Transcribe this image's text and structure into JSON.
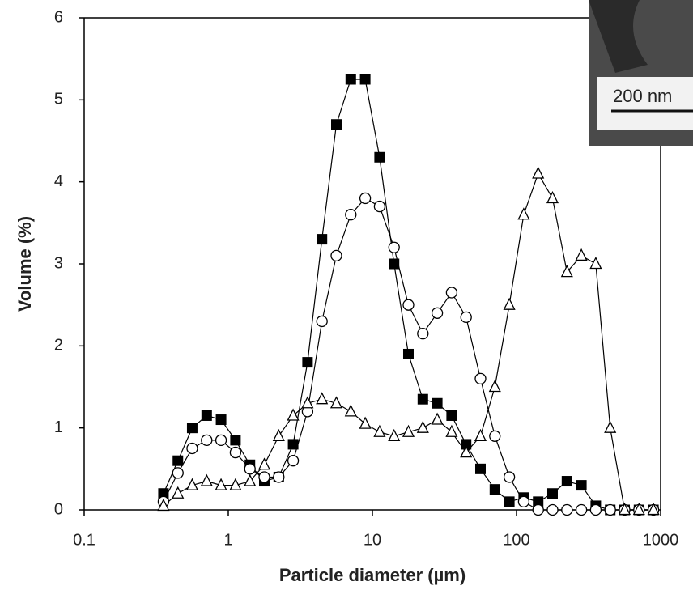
{
  "chart_data": {
    "type": "scatter",
    "x_label": "Particle diameter (µm)",
    "y_label": "Volume (%)",
    "xlog": true,
    "xlim": [
      0.1,
      1000
    ],
    "xticks": [
      0.1,
      1,
      10,
      100,
      1000
    ],
    "ylim": [
      0,
      6
    ],
    "yticks": [
      0,
      1,
      2,
      3,
      4,
      5,
      6
    ],
    "x": [
      0.355,
      0.447,
      0.562,
      0.708,
      0.891,
      1.122,
      1.413,
      1.778,
      2.239,
      2.818,
      3.548,
      4.467,
      5.623,
      7.079,
      8.913,
      11.22,
      14.13,
      17.78,
      22.39,
      28.18,
      35.48,
      44.67,
      56.23,
      70.79,
      89.13,
      112.2,
      141.3,
      177.8,
      223.9,
      281.8,
      354.8,
      446.7,
      562.3,
      707.9,
      891.3
    ],
    "series": [
      {
        "marker": "square-filled",
        "color": "#000000",
        "values": [
          0.2,
          0.6,
          1.0,
          1.15,
          1.1,
          0.85,
          0.55,
          0.35,
          0.4,
          0.8,
          1.8,
          3.3,
          4.7,
          5.25,
          5.25,
          4.3,
          3.0,
          1.9,
          1.35,
          1.3,
          1.15,
          0.8,
          0.5,
          0.25,
          0.1,
          0.15,
          0.1,
          0.2,
          0.35,
          0.3,
          0.05,
          0,
          0,
          0,
          0
        ]
      },
      {
        "marker": "circle-open",
        "color": "#000000",
        "values": [
          0.1,
          0.45,
          0.75,
          0.85,
          0.85,
          0.7,
          0.5,
          0.4,
          0.4,
          0.6,
          1.2,
          2.3,
          3.1,
          3.6,
          3.8,
          3.7,
          3.2,
          2.5,
          2.15,
          2.4,
          2.65,
          2.35,
          1.6,
          0.9,
          0.4,
          0.1,
          0,
          0,
          0,
          0,
          0,
          0,
          0,
          0,
          0
        ]
      },
      {
        "marker": "triangle-open",
        "color": "#000000",
        "values": [
          0.05,
          0.2,
          0.3,
          0.35,
          0.3,
          0.3,
          0.35,
          0.55,
          0.9,
          1.15,
          1.3,
          1.35,
          1.3,
          1.2,
          1.05,
          0.95,
          0.9,
          0.95,
          1.0,
          1.1,
          0.95,
          0.7,
          0.9,
          1.5,
          2.5,
          3.6,
          4.1,
          3.8,
          2.9,
          3.1,
          3.0,
          1.0,
          0,
          0,
          0
        ]
      }
    ]
  },
  "inset": {
    "scale_label": "200 nm"
  }
}
